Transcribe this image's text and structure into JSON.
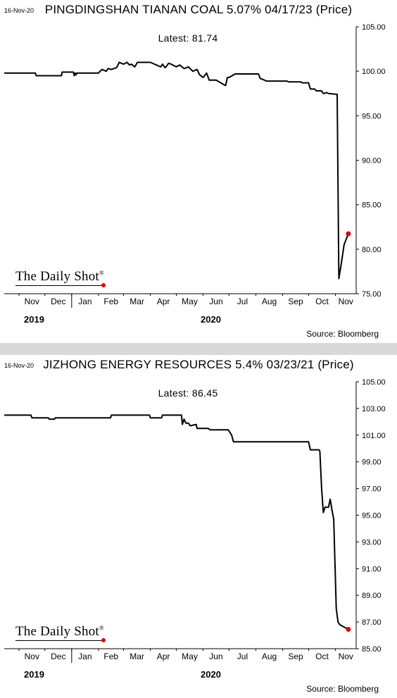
{
  "colors": {
    "line": "#000000",
    "marker": "#e00000",
    "separator": "#d9d9d9"
  },
  "chart_data": [
    {
      "type": "line",
      "date_label": "16-Nov-20",
      "title": "PINGDINGSHAN TIANAN COAL 5.07% 04/17/23 (Price)",
      "latest_label": "Latest:  81.74",
      "ylim": [
        75,
        105
      ],
      "yticks": [
        "105.00",
        "100.00",
        "95.00",
        "90.00",
        "85.00",
        "80.00",
        "75.00"
      ],
      "xticks": [
        "Nov",
        "Dec",
        "Jan",
        "Feb",
        "Mar",
        "Apr",
        "May",
        "Jun",
        "Jul",
        "Aug",
        "Sep",
        "Oct",
        "Nov"
      ],
      "years": [
        "2019",
        "2020"
      ],
      "source": "Source: Bloomberg",
      "logo": "The Daily Shot",
      "logo_mark": "®",
      "series": [
        {
          "x": [
            "2019-10-15",
            "2019-11-20",
            "2019-11-21",
            "2019-12-20",
            "2019-12-21",
            "2020-01-03",
            "2020-01-04",
            "2020-01-05",
            "2020-01-06",
            "2020-01-07",
            "2020-02-01",
            "2020-02-05",
            "2020-02-10",
            "2020-02-12",
            "2020-02-16",
            "2020-02-22",
            "2020-02-25",
            "2020-03-01",
            "2020-03-05",
            "2020-03-08",
            "2020-03-10",
            "2020-03-14",
            "2020-03-17",
            "2020-03-20",
            "2020-04-01",
            "2020-04-13",
            "2020-04-15",
            "2020-04-18",
            "2020-04-20",
            "2020-04-22",
            "2020-04-25",
            "2020-05-01",
            "2020-05-05",
            "2020-05-10",
            "2020-05-15",
            "2020-05-20",
            "2020-05-25",
            "2020-05-28",
            "2020-06-01",
            "2020-06-05",
            "2020-06-08",
            "2020-06-11",
            "2020-06-16",
            "2020-06-25",
            "2020-06-27",
            "2020-06-29",
            "2020-07-01",
            "2020-07-08",
            "2020-07-10",
            "2020-08-04",
            "2020-08-06",
            "2020-08-11",
            "2020-08-13",
            "2020-09-06",
            "2020-09-08",
            "2020-09-22",
            "2020-09-24",
            "2020-10-01",
            "2020-10-03",
            "2020-10-08",
            "2020-10-10",
            "2020-10-16",
            "2020-10-18",
            "2020-10-22",
            "2020-10-24",
            "2020-11-03",
            "2020-11-05",
            "2020-11-08",
            "2020-11-11",
            "2020-11-16"
          ],
          "y": [
            99.8,
            99.8,
            99.5,
            99.5,
            99.9,
            99.9,
            99.5,
            99.8,
            99.6,
            99.8,
            99.8,
            100.2,
            100.0,
            100.3,
            100.2,
            100.4,
            101.0,
            100.8,
            101.0,
            100.7,
            100.8,
            100.5,
            101.0,
            101.0,
            101.0,
            100.5,
            100.8,
            100.4,
            100.6,
            100.9,
            100.8,
            100.5,
            100.7,
            100.3,
            100.5,
            100.0,
            100.2,
            99.6,
            99.3,
            99.8,
            99.0,
            99.0,
            99.0,
            98.5,
            98.4,
            99.3,
            99.3,
            99.7,
            99.7,
            99.7,
            99.2,
            99.0,
            98.9,
            98.9,
            98.8,
            98.8,
            98.7,
            98.7,
            98.0,
            98.0,
            97.8,
            97.8,
            97.5,
            97.6,
            97.5,
            97.4,
            76.7,
            78.5,
            80.5,
            81.74
          ]
        }
      ]
    },
    {
      "type": "line",
      "date_label": "16-Nov-20",
      "title": "JIZHONG ENERGY RESOURCES 5.4% 03/23/21 (Price)",
      "latest_label": "Latest:  86.45",
      "ylim": [
        85,
        105
      ],
      "yticks": [
        "105.00",
        "103.00",
        "101.00",
        "99.00",
        "97.00",
        "95.00",
        "93.00",
        "91.00",
        "89.00",
        "87.00",
        "85.00"
      ],
      "xticks": [
        "Nov",
        "Dec",
        "Jan",
        "Feb",
        "Mar",
        "Apr",
        "May",
        "Jun",
        "Jul",
        "Aug",
        "Sep",
        "Oct",
        "Nov"
      ],
      "years": [
        "2019",
        "2020"
      ],
      "source": "Source: Bloomberg",
      "logo": "The Daily Shot",
      "logo_mark": "®",
      "series": [
        {
          "x": [
            "2019-10-15",
            "2019-11-15",
            "2019-11-16",
            "2019-12-05",
            "2019-12-06",
            "2019-12-12",
            "2019-12-13",
            "2020-01-05",
            "2020-01-06",
            "2020-02-15",
            "2020-02-16",
            "2020-03-31",
            "2020-04-01",
            "2020-04-14",
            "2020-04-15",
            "2020-05-07",
            "2020-05-08",
            "2020-05-10",
            "2020-05-12",
            "2020-05-15",
            "2020-05-17",
            "2020-05-24",
            "2020-05-25",
            "2020-06-07",
            "2020-06-09",
            "2020-06-30",
            "2020-07-04",
            "2020-07-06",
            "2020-07-07",
            "2020-10-01",
            "2020-10-03",
            "2020-10-12",
            "2020-10-13",
            "2020-10-14",
            "2020-10-16",
            "2020-10-18",
            "2020-10-20",
            "2020-10-24",
            "2020-10-26",
            "2020-10-28",
            "2020-10-30",
            "2020-11-02",
            "2020-11-04",
            "2020-11-06",
            "2020-11-16"
          ],
          "y": [
            102.5,
            102.5,
            102.3,
            102.3,
            102.2,
            102.2,
            102.3,
            102.3,
            102.3,
            102.3,
            102.5,
            102.5,
            102.3,
            102.3,
            102.5,
            102.5,
            101.8,
            102.2,
            101.9,
            101.9,
            101.7,
            101.8,
            101.5,
            101.5,
            101.4,
            101.4,
            101.0,
            100.5,
            100.5,
            100.5,
            99.9,
            99.9,
            99.9,
            99.8,
            97.0,
            95.2,
            95.6,
            95.6,
            96.2,
            95.4,
            94.7,
            88.0,
            87.0,
            86.8,
            86.45
          ]
        }
      ]
    }
  ]
}
